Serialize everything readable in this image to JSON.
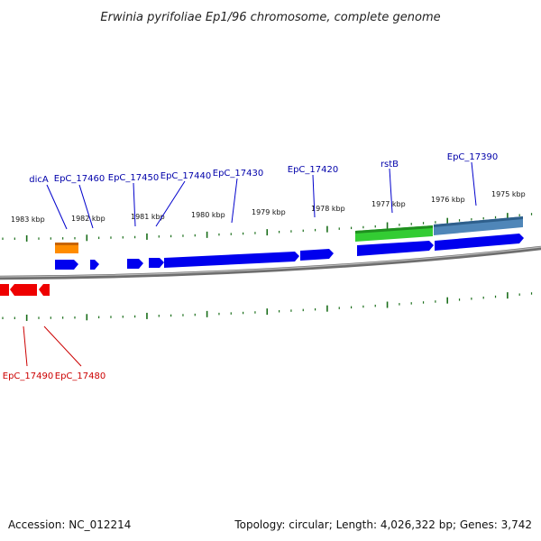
{
  "title": "Erwinia pyrifoliae Ep1/96 chromosome, complete genome",
  "footer": {
    "accession_label": "Accession:",
    "accession": "NC_012214",
    "topology_label": "Topology:",
    "topology": "circular",
    "length_label": "Length:",
    "length": "4,026,322 bp",
    "genes_label": "Genes:",
    "genes": "3,742"
  },
  "scale": {
    "unit": "kbp",
    "labels": [
      "1983 kbp",
      "1982 kbp",
      "1981 kbp",
      "1980 kbp",
      "1979 kbp",
      "1978 kbp",
      "1977 kbp",
      "1976 kbp",
      "1975 kbp"
    ]
  },
  "colors": {
    "forward_gene": "#0000ee",
    "reverse_gene": "#ee0000",
    "forward_label": "#0000aa",
    "reverse_label": "#cc0000",
    "tick": "#1a6e1a",
    "backbone": "#808080",
    "feature_orange": "#ff8c00",
    "feature_green": "#33cc33",
    "feature_steelblue": "#4f86b8"
  },
  "forward_genes": [
    "dicA",
    "EpC_17460",
    "EpC_17450",
    "EpC_17440",
    "EpC_17430",
    "EpC_17420",
    "rstB",
    "EpC_17390"
  ],
  "reverse_genes": [
    "EpC_17490",
    "EpC_17480"
  ]
}
